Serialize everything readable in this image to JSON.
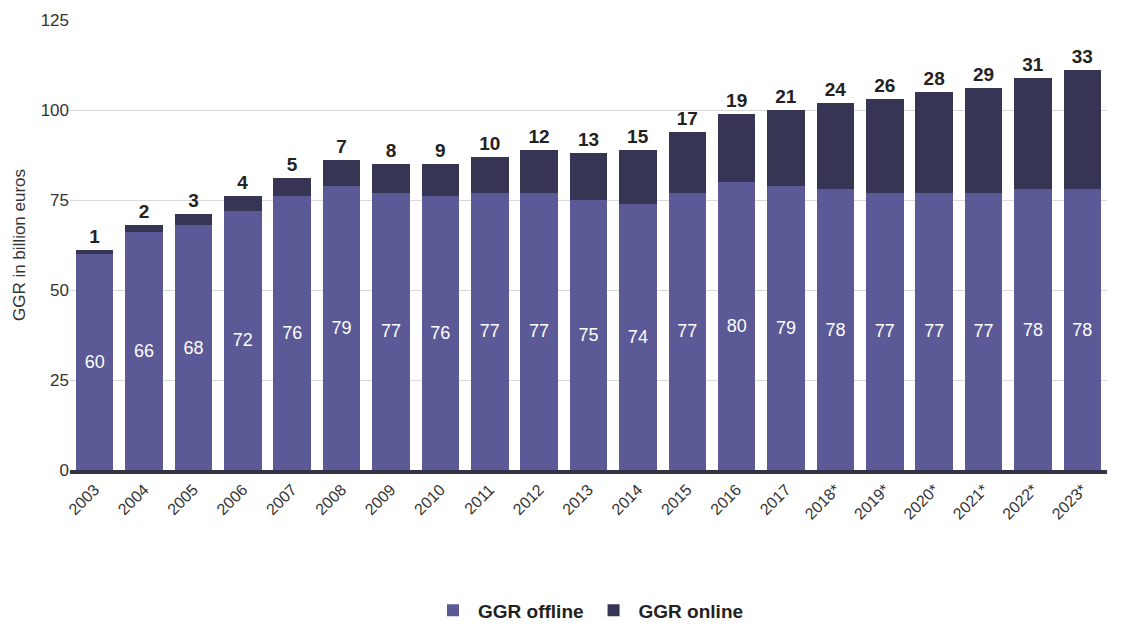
{
  "chart_data": {
    "type": "bar",
    "stacked": true,
    "y_label": "GGR in billion euros",
    "categories": [
      "2003",
      "2004",
      "2005",
      "2006",
      "2007",
      "2008",
      "2009",
      "2010",
      "2011",
      "2012",
      "2013",
      "2014",
      "2015",
      "2016",
      "2017",
      "2018*",
      "2019*",
      "2020*",
      "2021*",
      "2022*",
      "2023*"
    ],
    "series": [
      {
        "name": "GGR offline",
        "color": "#5b5996",
        "values": [
          60,
          66,
          68,
          72,
          76,
          79,
          77,
          76,
          77,
          77,
          75,
          74,
          77,
          80,
          79,
          78,
          77,
          77,
          77,
          78,
          78
        ]
      },
      {
        "name": "GGR online",
        "color": "#363553",
        "values": [
          1,
          2,
          3,
          4,
          5,
          7,
          8,
          9,
          10,
          12,
          13,
          15,
          17,
          19,
          21,
          24,
          26,
          28,
          29,
          31,
          33
        ]
      }
    ],
    "ylim": [
      0,
      125
    ],
    "yticks": [
      0,
      25,
      50,
      75,
      100,
      125
    ],
    "grid": true,
    "legend": "bottom",
    "data_labels": true
  }
}
